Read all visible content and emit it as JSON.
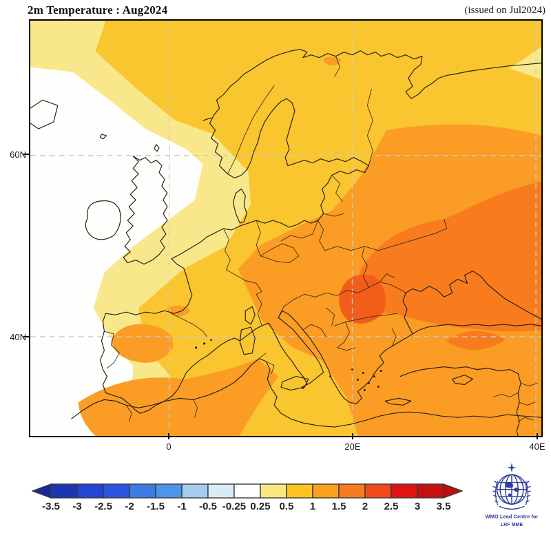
{
  "header": {
    "title": "2m Temperature : Aug2024",
    "issued": "(issued on Jul2024)"
  },
  "map": {
    "lat_labels": [
      "60N",
      "40N"
    ],
    "lon_labels": [
      "0",
      "20E",
      "40E"
    ]
  },
  "palette": {
    "gold": "#FAC62F",
    "pale_yellow": "#F9E88B",
    "white": "#FEFEFD",
    "orange": "#FB9D24",
    "dark_orange": "#F87C1E",
    "red_orange": "#F25E1A",
    "grid_line": "#CCCCCC",
    "coast_line": "#2B2117"
  },
  "colorbar": {
    "tick_labels": [
      "-3.5",
      "-3",
      "-2.5",
      "-2",
      "-1.5",
      "-1",
      "-0.5",
      "-0.25",
      "0.25",
      "0.5",
      "1",
      "1.5",
      "2",
      "2.5",
      "3",
      "3.5"
    ],
    "segment_colors": [
      "#1D35B5",
      "#2444D6",
      "#2A55DE",
      "#3C7BE6",
      "#4E94EA",
      "#A6CCF0",
      "#D8ECF8",
      "#FFFFFF",
      "#F9E97E",
      "#FBC51D",
      "#F9A01E",
      "#F87C1D",
      "#F4491A",
      "#E01313",
      "#C51010"
    ],
    "arrow_left_color": "#16289B",
    "arrow_right_color": "#BE0E0E",
    "outline_color": "#3A3A3A"
  },
  "logo": {
    "line1": "WMO Lead Centre for",
    "line2": "LRF MME",
    "color": "#2F3E9E"
  }
}
